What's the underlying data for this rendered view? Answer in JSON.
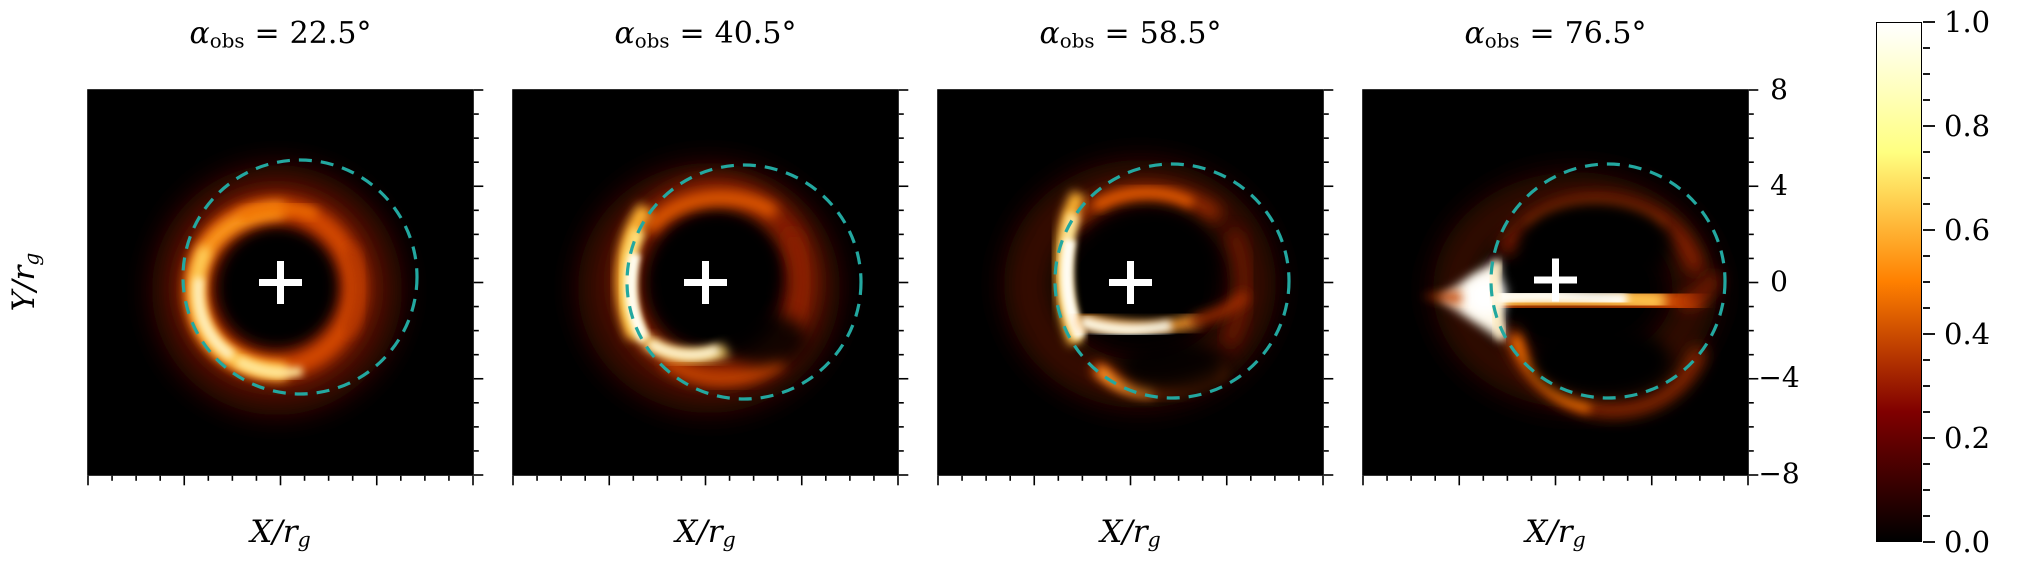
{
  "figure": {
    "kind": "black-hole accretion disk images at four observer inclinations",
    "colormap": "afmhot"
  },
  "labels": {
    "alpha": "α",
    "alpha_sub": "obs",
    "equals": "=",
    "xlabel_base": "X/r",
    "xlabel_sub": "g",
    "ylabel_base": "Y/r",
    "ylabel_sub": "g"
  },
  "panels": [
    {
      "angle": "22.5°"
    },
    {
      "angle": "40.5°"
    },
    {
      "angle": "58.5°"
    },
    {
      "angle": "76.5°"
    }
  ],
  "right_axis": {
    "ticks": [
      "8",
      "4",
      "0",
      "−4",
      "−8"
    ]
  },
  "colorbar": {
    "ticks": [
      "1.0",
      "0.8",
      "0.6",
      "0.4",
      "0.2",
      "0.0"
    ]
  },
  "colors": {
    "background": "#ffffff",
    "panel_background": "#000000",
    "dashed_circle": "#23a8a0",
    "cross": "#ffffff",
    "text": "#000000",
    "cmap_0": "#000000",
    "cmap_25": "#800000",
    "cmap_50": "#ff8000",
    "cmap_75": "#ffff80",
    "cmap_100": "#ffffff"
  },
  "chart_data": {
    "type": "heatmap",
    "panels": [
      {
        "title": "α_obs = 22.5°",
        "alpha_obs_deg": 22.5
      },
      {
        "title": "α_obs = 40.5°",
        "alpha_obs_deg": 40.5
      },
      {
        "title": "α_obs = 58.5°",
        "alpha_obs_deg": 58.5
      },
      {
        "title": "α_obs = 76.5°",
        "alpha_obs_deg": 76.5
      }
    ],
    "xlabel": "X/r_g",
    "ylabel": "Y/r_g",
    "x_range": [
      -8,
      8
    ],
    "y_range": [
      -8,
      8
    ],
    "x_major_ticks": [
      -8,
      -4,
      0,
      4,
      8
    ],
    "y_major_ticks": [
      8,
      4,
      0,
      -4,
      -8
    ],
    "minor_tick_step_rg": 1,
    "y_tick_labels_location": "right of last panel",
    "colormap": "afmhot",
    "colorbar": {
      "range": [
        0.0,
        1.0
      ],
      "major_ticks": [
        1.0,
        0.8,
        0.6,
        0.4,
        0.2,
        0.0
      ],
      "minor_tick_step": 0.05,
      "position": "right",
      "orientation": "vertical"
    },
    "overlays": [
      {
        "name": "shadow-circle",
        "shape": "dashed-circle",
        "radius_rg": 5,
        "color": "#23a8a0",
        "center_offset_rg_by_panel": [
          [
            0.9,
            0.2
          ],
          [
            1.6,
            0.0
          ],
          [
            1.7,
            0.1
          ],
          [
            2.2,
            0.1
          ]
        ]
      },
      {
        "name": "origin-cross",
        "shape": "cross",
        "position_rg": [
          0,
          0
        ],
        "color": "#ffffff"
      }
    ],
    "values": "normalized intensity 0–1; bright lensed ring/crescent shifting from face-on ring (22.5°) to edge-on disk with horizontal band (76.5°)"
  }
}
